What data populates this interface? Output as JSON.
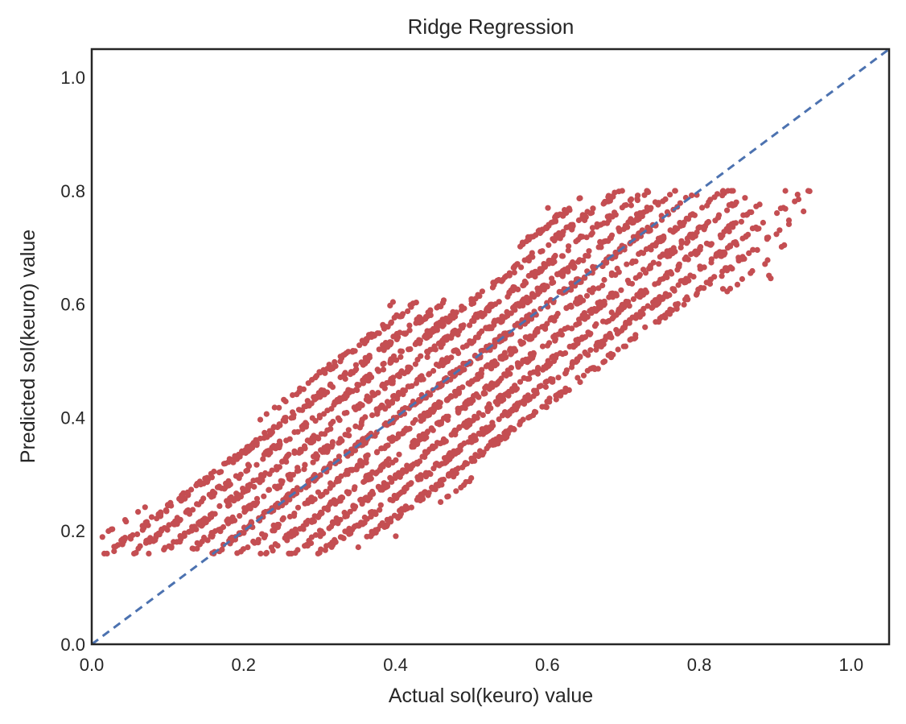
{
  "chart_data": {
    "type": "scatter",
    "title": "Ridge Regression",
    "xlabel": "Actual sol(keuro) value",
    "ylabel": "Predicted sol(keuro) value",
    "xlim": [
      0.0,
      1.05
    ],
    "ylim": [
      0.0,
      1.05
    ],
    "xticks": [
      "0.0",
      "0.2",
      "0.4",
      "0.6",
      "0.8",
      "1.0"
    ],
    "yticks": [
      "0.0",
      "0.2",
      "0.4",
      "0.6",
      "0.8",
      "1.0"
    ],
    "grid": false,
    "legend": "none",
    "colors": {
      "points": "#c44e52",
      "reference_line": "#4c72b0",
      "frame": "#262626"
    },
    "reference_line": {
      "style": "dashed",
      "x": [
        0.0,
        1.05
      ],
      "y": [
        0.0,
        1.05
      ]
    },
    "series": [
      {
        "points_estimated": 3000,
        "prediction_floor": 0.16,
        "prediction_cap": 0.8,
        "x_range": [
          0.0,
          0.95
        ],
        "trend": [
          {
            "x": 0.0,
            "y_low": 0.16,
            "y_high": 0.17
          },
          {
            "x": 0.1,
            "y_low": 0.16,
            "y_high": 0.26
          },
          {
            "x": 0.2,
            "y_low": 0.16,
            "y_high": 0.36
          },
          {
            "x": 0.3,
            "y_low": 0.16,
            "y_high": 0.48
          },
          {
            "x": 0.4,
            "y_low": 0.2,
            "y_high": 0.6
          },
          {
            "x": 0.5,
            "y_low": 0.3,
            "y_high": 0.6
          },
          {
            "x": 0.55,
            "y_low": 0.36,
            "y_high": 0.67
          },
          {
            "x": 0.6,
            "y_low": 0.42,
            "y_high": 0.77
          },
          {
            "x": 0.7,
            "y_low": 0.52,
            "y_high": 0.8
          },
          {
            "x": 0.8,
            "y_low": 0.62,
            "y_high": 0.8
          },
          {
            "x": 0.9,
            "y_low": 0.65,
            "y_high": 0.8
          },
          {
            "x": 0.95,
            "y_low": 0.79,
            "y_high": 0.8
          }
        ]
      }
    ]
  }
}
